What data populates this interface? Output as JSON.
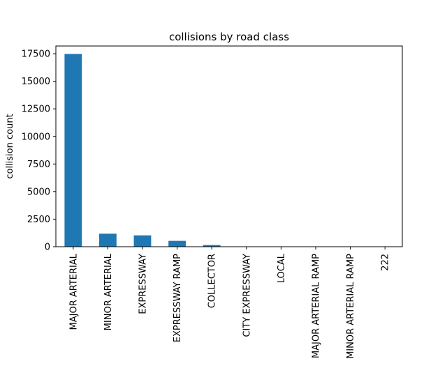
{
  "chart_data": {
    "type": "bar",
    "title": "collisions by road class",
    "xlabel": "",
    "ylabel": "collision count",
    "categories": [
      "MAJOR ARTERIAL",
      "MINOR ARTERIAL",
      "EXPRESSWAY",
      "EXPRESSWAY RAMP",
      "COLLECTOR",
      "CITY EXPRESSWAY",
      "LOCAL",
      "MAJOR ARTERIAL RAMP",
      "MINOR ARTERIAL RAMP",
      "222"
    ],
    "values": [
      17480,
      1180,
      1030,
      530,
      150,
      10,
      8,
      5,
      3,
      1
    ],
    "ylim": [
      0,
      18200
    ],
    "yticks": [
      0,
      2500,
      5000,
      7500,
      10000,
      12500,
      15000,
      17500
    ],
    "ytick_labels": [
      "0",
      "2500",
      "5000",
      "7500",
      "10000",
      "12500",
      "15000",
      "17500"
    ],
    "bar_color": "#1f77b4",
    "grid": false,
    "legend": "none"
  }
}
